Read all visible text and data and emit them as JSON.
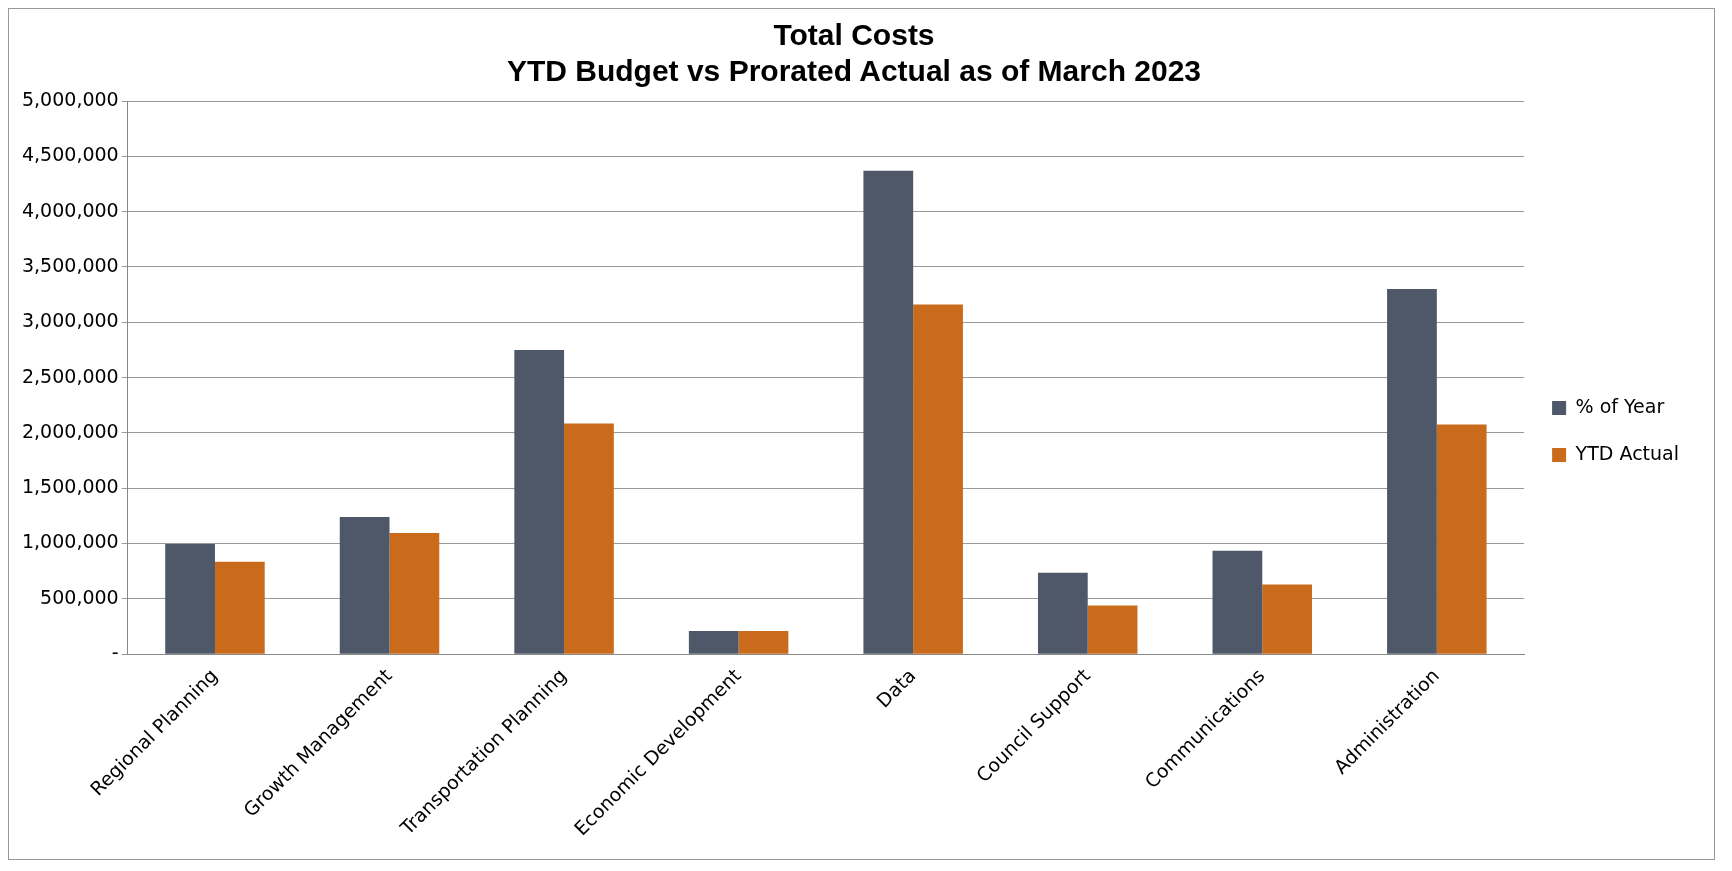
{
  "chart_data": {
    "type": "bar",
    "title": [
      "Total Costs",
      "YTD Budget vs Prorated Actual as of March 2023"
    ],
    "categories": [
      "Regional Planning",
      "Growth Management",
      "Transportation Planning",
      "Economic Development",
      "Data",
      "Council Support",
      "Communications",
      "Administration"
    ],
    "series": [
      {
        "name": "% of Year",
        "color": "#4f5869",
        "values": [
          995000,
          1240000,
          2750000,
          210000,
          4370000,
          735000,
          935000,
          3300000
        ]
      },
      {
        "name": "YTD Actual",
        "color": "#c96b1b",
        "values": [
          835000,
          1095000,
          2085000,
          210000,
          3160000,
          440000,
          630000,
          2075000
        ]
      }
    ],
    "ylim": [
      0,
      5000000
    ],
    "yticks": [
      {
        "value": 0,
        "label": "-"
      },
      {
        "value": 500000,
        "label": "500,000"
      },
      {
        "value": 1000000,
        "label": "1,000,000"
      },
      {
        "value": 1500000,
        "label": "1,500,000"
      },
      {
        "value": 2000000,
        "label": "2,000,000"
      },
      {
        "value": 2500000,
        "label": "2,500,000"
      },
      {
        "value": 3000000,
        "label": "3,000,000"
      },
      {
        "value": 3500000,
        "label": "3,500,000"
      },
      {
        "value": 4000000,
        "label": "4,000,000"
      },
      {
        "value": 4500000,
        "label": "4,500,000"
      },
      {
        "value": 5000000,
        "label": "5,000,000"
      }
    ],
    "grid": "y",
    "legend": "right"
  }
}
